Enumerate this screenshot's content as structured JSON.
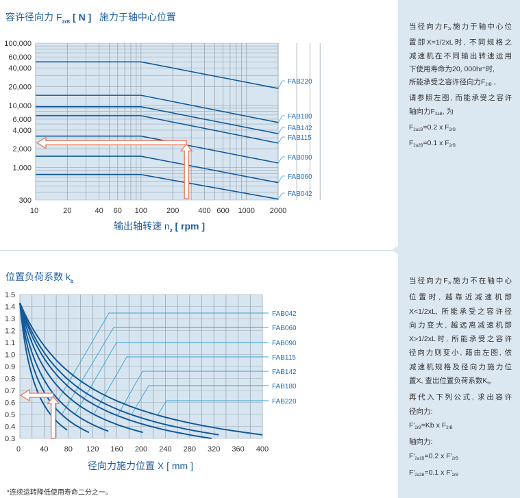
{
  "top": {
    "title_pre": "容许径向力 F",
    "title_sub": "2rB",
    "title_unit": " [ N ]",
    "title_post": "施力于轴中心位置",
    "xlabel_pre": "输出轴转速 n",
    "xlabel_sub": "2",
    "xlabel_post": " [ rpm ]"
  },
  "bottom": {
    "title_pre": "位置负荷系数 k",
    "title_sub": "b",
    "xlabel": "径向力施力位置 X [ mm ]"
  },
  "footnote": "*连续运转降低使用寿命二分之一。",
  "panel1": [
    [
      {
        "t": "当径向力F"
      },
      {
        "sub": "2r"
      },
      {
        "t": "施力于轴中心位"
      }
    ],
    [
      {
        "t": "置即X=1/2xL时, 不同规格之"
      }
    ],
    [
      {
        "t": "减速机在不同输出转速运用"
      }
    ],
    [
      {
        "t": "下使用寿命为20, 000hr"
      },
      {
        "star": "*"
      },
      {
        "t": "时,"
      }
    ],
    [
      {
        "t": "所能承受之容许径向力F"
      },
      {
        "sub": "2rB"
      },
      {
        "t": " ,"
      }
    ],
    [
      {
        "t": "请参照左图, 而能承受之容许"
      }
    ],
    [
      {
        "t": "轴向力F"
      },
      {
        "sub": "2aB"
      },
      {
        "t": ", 为"
      }
    ],
    [
      {
        "t": "F"
      },
      {
        "sub": "2a1B"
      },
      {
        "t": "=0.2 x F"
      },
      {
        "sub": "2rB"
      }
    ],
    [
      {
        "t": "F"
      },
      {
        "sub": "2a2B"
      },
      {
        "t": "=0.1 x F"
      },
      {
        "sub": "2rB"
      }
    ]
  ],
  "panel2": [
    [
      {
        "t": "当径向力F"
      },
      {
        "sub": "2r"
      },
      {
        "t": "施力不在轴中心"
      }
    ],
    [
      {
        "t": "位置时, 越靠近减速机即"
      }
    ],
    [
      {
        "t": "X<1/2xL, 所能承受之容许径"
      }
    ],
    [
      {
        "t": "向力变大, 越远离减速机即"
      }
    ],
    [
      {
        "t": "X>1/2xL时, 所能承受之容许"
      }
    ],
    [
      {
        "t": "径向力则变小, 藉由左图, 依"
      }
    ],
    [
      {
        "t": "减速机规格及径向力施力位"
      }
    ],
    [
      {
        "t": "置X, 查出位置负荷系数K"
      },
      {
        "sub": "b"
      },
      {
        "t": ","
      }
    ],
    [
      {
        "t": "再代入下列公式, 求出容许"
      }
    ],
    [
      {
        "t": "径向力:"
      }
    ],
    [
      {
        "t": "F'"
      },
      {
        "sub": "2rB"
      },
      {
        "t": "=Kb x F"
      },
      {
        "sub": "2rB"
      }
    ],
    [
      {
        "t": "轴向力:"
      }
    ],
    [
      {
        "t": "F'"
      },
      {
        "sub": "2a1B"
      },
      {
        "t": "=0.2 x F'"
      },
      {
        "sub": "2rB"
      }
    ],
    [
      {
        "t": "F'"
      },
      {
        "sub": "2a2B"
      },
      {
        "t": "=0.1 x F'"
      },
      {
        "sub": "2rB"
      }
    ]
  ],
  "colors": {
    "curve": "#135a9a",
    "leader": "#2fa4d9",
    "plot_bg": "#d7e5f0",
    "grid": "#9aa7b2",
    "arrow": "#e8866a",
    "label": "#1f6fb5"
  },
  "chart_data": [
    {
      "type": "line",
      "x_scale": "log",
      "y_scale": "log",
      "xlim": [
        10,
        2000
      ],
      "ylim": [
        300,
        100000
      ],
      "grid": true,
      "legend": "right (line-end labels)",
      "x_ticks": [
        "10",
        "20",
        "40",
        "60",
        "100",
        "200",
        "400",
        "600",
        "1000",
        "2000"
      ],
      "x_tick_values": [
        10,
        20,
        40,
        60,
        100,
        200,
        400,
        600,
        1000,
        2000
      ],
      "y_ticks": [
        "100,000",
        "60,000",
        "40,000",
        "20,000",
        "10,000",
        "6,000",
        "4,000",
        "2,000",
        "1,000",
        "300"
      ],
      "y_tick_values": [
        100000,
        60000,
        40000,
        20000,
        10000,
        6000,
        4000,
        2000,
        1000,
        300
      ],
      "series": [
        {
          "name": "FAB220",
          "x": [
            10,
            100,
            2000
          ],
          "y": [
            50000,
            50000,
            18700
          ]
        },
        {
          "name": "FAB180",
          "x": [
            10,
            100,
            2000
          ],
          "y": [
            14500,
            14500,
            5300
          ]
        },
        {
          "name": "FAB142",
          "x": [
            10,
            100,
            2000
          ],
          "y": [
            9500,
            9500,
            3500
          ]
        },
        {
          "name": "FAB115",
          "x": [
            10,
            100,
            2000
          ],
          "y": [
            6800,
            6800,
            2470
          ]
        },
        {
          "name": "FAB090",
          "x": [
            10,
            100,
            2000
          ],
          "y": [
            3200,
            3200,
            1180
          ]
        },
        {
          "name": "FAB060",
          "x": [
            10,
            100,
            2000
          ],
          "y": [
            1520,
            1520,
            570
          ]
        },
        {
          "name": "FAB042",
          "x": [
            10,
            100,
            2000
          ],
          "y": [
            770,
            770,
            310
          ]
        }
      ],
      "example_arrow": {
        "x": 270,
        "y": 2500
      }
    },
    {
      "type": "line",
      "xlim": [
        0,
        400
      ],
      "ylim": [
        0.3,
        1.5
      ],
      "grid": true,
      "legend": "right (leader-line labels)",
      "x_ticks": [
        "0",
        "40",
        "80",
        "120",
        "160",
        "200",
        "240",
        "280",
        "320",
        "360",
        "400"
      ],
      "y_ticks": [
        "1.5",
        "1.4",
        "1.3",
        "1.2",
        "1.1",
        "1.0",
        "0.9",
        "0.8",
        "0.7",
        "0.6",
        "0.5",
        "0.4",
        "0.3"
      ],
      "series": [
        {
          "name": "FAB042",
          "x": [
            0,
            10,
            20,
            40,
            60,
            78
          ],
          "y": [
            1.43,
            1.05,
            0.83,
            0.58,
            0.45,
            0.37
          ]
        },
        {
          "name": "FAB060",
          "x": [
            0,
            20,
            40,
            60,
            80,
            114
          ],
          "y": [
            1.43,
            0.93,
            0.69,
            0.55,
            0.45,
            0.35
          ]
        },
        {
          "name": "FAB090",
          "x": [
            0,
            20,
            40,
            80,
            120,
            146
          ],
          "y": [
            1.43,
            1.02,
            0.79,
            0.54,
            0.42,
            0.36
          ]
        },
        {
          "name": "FAB115",
          "x": [
            0,
            40,
            80,
            120,
            160,
            203
          ],
          "y": [
            1.43,
            0.89,
            0.65,
            0.51,
            0.42,
            0.35
          ]
        },
        {
          "name": "FAB142",
          "x": [
            0,
            40,
            80,
            160,
            240,
            316
          ],
          "y": [
            1.43,
            0.97,
            0.73,
            0.49,
            0.37,
            0.3
          ]
        },
        {
          "name": "FAB180",
          "x": [
            0,
            40,
            80,
            160,
            240,
            328
          ],
          "y": [
            1.43,
            1.02,
            0.79,
            0.55,
            0.42,
            0.33
          ]
        },
        {
          "name": "FAB220",
          "x": [
            0,
            40,
            80,
            160,
            240,
            320,
            400
          ],
          "y": [
            1.43,
            1.07,
            0.86,
            0.61,
            0.48,
            0.39,
            0.33
          ]
        }
      ],
      "example_arrow": {
        "x": 55,
        "y": 0.66
      }
    }
  ]
}
